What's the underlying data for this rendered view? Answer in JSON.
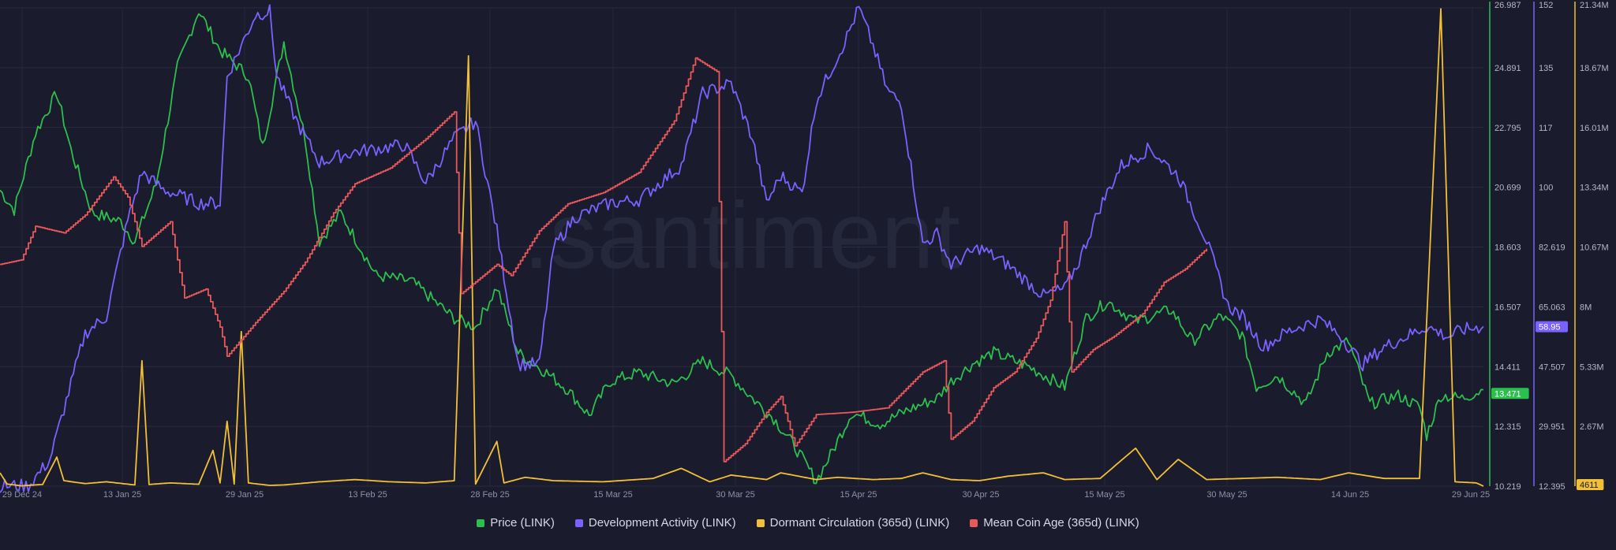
{
  "chart_data": {
    "type": "line",
    "watermark": ".santiment",
    "x_ticks": [
      "29 Dec 24",
      "13 Jan 25",
      "29 Jan 25",
      "13 Feb 25",
      "28 Feb 25",
      "15 Mar 25",
      "30 Mar 25",
      "15 Apr 25",
      "30 Apr 25",
      "15 May 25",
      "30 May 25",
      "14 Jun 25",
      "29 Jun 25"
    ],
    "x_range": [
      "2024-12-29",
      "2025-06-29"
    ],
    "grid": true,
    "legend_position": "bottom",
    "axes": [
      {
        "id": "price",
        "ticks": [
          "26.987",
          "24.891",
          "22.795",
          "20.699",
          "18.603",
          "16.507",
          "14.411",
          "12.315",
          "10.219"
        ],
        "range": [
          10.219,
          26.987
        ],
        "color": "#2dbf4e",
        "current_label": "13.471",
        "current_value": 13.471
      },
      {
        "id": "dev",
        "ticks": [
          "152",
          "135",
          "117",
          "100",
          "82.619",
          "65.063",
          "47.507",
          "29.951",
          "12.395"
        ],
        "range": [
          12.395,
          152
        ],
        "color": "#7b61ff",
        "current_label": "58.95",
        "current_value": 58.95
      },
      {
        "id": "dormant",
        "ticks": [
          "21.34M",
          "18.67M",
          "16.01M",
          "13.34M",
          "10.67M",
          "8M",
          "5.33M",
          "2.67M",
          "4611"
        ],
        "range": [
          4611,
          21340000
        ],
        "color": "#f2c037",
        "current_label": "4611",
        "current_value": 4611
      }
    ],
    "series": [
      {
        "name": "Price (LINK)",
        "axis": "price",
        "color": "#2dbf4e",
        "noise": 0.22,
        "points": [
          [
            0,
            20.6
          ],
          [
            2,
            19.9
          ],
          [
            5,
            22.6
          ],
          [
            8,
            24.0
          ],
          [
            10,
            22.0
          ],
          [
            13,
            19.8
          ],
          [
            17,
            19.5
          ],
          [
            19,
            18.8
          ],
          [
            22,
            20.8
          ],
          [
            25,
            24.9
          ],
          [
            28,
            26.9
          ],
          [
            31,
            25.5
          ],
          [
            35,
            24.6
          ],
          [
            37,
            22.1
          ],
          [
            40,
            25.8
          ],
          [
            43,
            22.4
          ],
          [
            45,
            18.8
          ],
          [
            48,
            19.8
          ],
          [
            53,
            17.6
          ],
          [
            58,
            17.4
          ],
          [
            64,
            16.1
          ],
          [
            67,
            15.8
          ],
          [
            70,
            17.2
          ],
          [
            73,
            14.9
          ],
          [
            77,
            14.2
          ],
          [
            80,
            13.6
          ],
          [
            83,
            12.7
          ],
          [
            86,
            13.9
          ],
          [
            90,
            14.2
          ],
          [
            95,
            13.8
          ],
          [
            99,
            14.6
          ],
          [
            103,
            14.1
          ],
          [
            106,
            13.3
          ],
          [
            109,
            12.6
          ],
          [
            112,
            11.6
          ],
          [
            115,
            10.4
          ],
          [
            117,
            11.3
          ],
          [
            120,
            12.8
          ],
          [
            124,
            12.4
          ],
          [
            128,
            12.9
          ],
          [
            132,
            13.3
          ],
          [
            134,
            13.9
          ],
          [
            137,
            14.5
          ],
          [
            140,
            14.9
          ],
          [
            145,
            14.4
          ],
          [
            150,
            13.7
          ],
          [
            153,
            16.1
          ],
          [
            156,
            16.7
          ],
          [
            160,
            16.0
          ],
          [
            165,
            16.4
          ],
          [
            168,
            15.3
          ],
          [
            172,
            16.2
          ],
          [
            175,
            15.5
          ],
          [
            177,
            13.7
          ],
          [
            180,
            14.1
          ],
          [
            184,
            13.1
          ],
          [
            187,
            14.9
          ],
          [
            190,
            15.3
          ],
          [
            193,
            13.1
          ],
          [
            197,
            13.4
          ],
          [
            200,
            13.0
          ],
          [
            201,
            12.0
          ],
          [
            203,
            13.4
          ],
          [
            206,
            13.3
          ],
          [
            209,
            13.6
          ]
        ]
      },
      {
        "name": "Development Activity (LINK)",
        "axis": "dev",
        "color": "#7b61ff",
        "noise": 2.0,
        "points": [
          [
            0,
            12.5
          ],
          [
            4,
            12.5
          ],
          [
            7,
            20
          ],
          [
            12,
            57
          ],
          [
            15,
            62
          ],
          [
            18,
            90
          ],
          [
            20,
            104
          ],
          [
            23,
            99
          ],
          [
            28,
            95
          ],
          [
            31,
            95
          ],
          [
            32,
            132
          ],
          [
            36,
            150
          ],
          [
            38,
            151
          ],
          [
            39,
            132
          ],
          [
            42,
            118
          ],
          [
            45,
            107
          ],
          [
            50,
            110
          ],
          [
            57,
            112
          ],
          [
            60,
            101
          ],
          [
            64,
            114
          ],
          [
            67,
            119
          ],
          [
            70,
            87
          ],
          [
            73,
            48
          ],
          [
            76,
            48
          ],
          [
            78,
            82
          ],
          [
            81,
            91
          ],
          [
            86,
            95
          ],
          [
            90,
            96
          ],
          [
            96,
            106
          ],
          [
            99,
            127
          ],
          [
            103,
            130
          ],
          [
            106,
            114
          ],
          [
            108,
            95
          ],
          [
            110,
            103
          ],
          [
            113,
            98
          ],
          [
            115,
            125
          ],
          [
            119,
            142
          ],
          [
            121,
            152
          ],
          [
            123,
            141
          ],
          [
            125,
            128
          ],
          [
            127,
            124
          ],
          [
            130,
            83
          ],
          [
            132,
            86
          ],
          [
            134,
            77
          ],
          [
            138,
            82
          ],
          [
            142,
            77
          ],
          [
            147,
            68
          ],
          [
            150,
            70
          ],
          [
            152,
            78
          ],
          [
            155,
            94
          ],
          [
            158,
            106
          ],
          [
            162,
            111
          ],
          [
            166,
            103
          ],
          [
            170,
            84
          ],
          [
            173,
            65
          ],
          [
            175,
            62
          ],
          [
            178,
            53
          ],
          [
            181,
            57
          ],
          [
            183,
            59
          ],
          [
            186,
            61
          ],
          [
            189,
            56
          ],
          [
            192,
            48
          ],
          [
            195,
            53
          ],
          [
            198,
            56
          ],
          [
            201,
            59
          ],
          [
            204,
            56
          ],
          [
            206,
            58
          ],
          [
            209,
            59
          ]
        ]
      },
      {
        "name": "Dormant Circulation (365d) (LINK)",
        "axis": "dormant",
        "color": "#f2c037",
        "noise": 0,
        "points": [
          [
            0,
            600000
          ],
          [
            1,
            100000
          ],
          [
            3,
            20000
          ],
          [
            6,
            80000
          ],
          [
            8,
            1300000
          ],
          [
            9,
            250000
          ],
          [
            12,
            120000
          ],
          [
            15,
            200000
          ],
          [
            19,
            60000
          ],
          [
            20,
            5600000
          ],
          [
            21,
            80000
          ],
          [
            24,
            150000
          ],
          [
            28,
            90000
          ],
          [
            30,
            1600000
          ],
          [
            31,
            150000
          ],
          [
            32,
            2900000
          ],
          [
            33,
            100000
          ],
          [
            34,
            6900000
          ],
          [
            35,
            150000
          ],
          [
            38,
            40000
          ],
          [
            40,
            60000
          ],
          [
            45,
            200000
          ],
          [
            50,
            300000
          ],
          [
            55,
            200000
          ],
          [
            60,
            150000
          ],
          [
            64,
            250000
          ],
          [
            66,
            19200000
          ],
          [
            67,
            100000
          ],
          [
            70,
            2000000
          ],
          [
            71,
            150000
          ],
          [
            74,
            400000
          ],
          [
            78,
            250000
          ],
          [
            85,
            200000
          ],
          [
            92,
            350000
          ],
          [
            96,
            800000
          ],
          [
            100,
            200000
          ],
          [
            103,
            500000
          ],
          [
            108,
            300000
          ],
          [
            110,
            600000
          ],
          [
            115,
            300000
          ],
          [
            118,
            400000
          ],
          [
            123,
            300000
          ],
          [
            127,
            350000
          ],
          [
            130,
            600000
          ],
          [
            134,
            300000
          ],
          [
            138,
            250000
          ],
          [
            142,
            450000
          ],
          [
            147,
            600000
          ],
          [
            150,
            300000
          ],
          [
            155,
            350000
          ],
          [
            160,
            1700000
          ],
          [
            163,
            300000
          ],
          [
            166,
            1200000
          ],
          [
            170,
            300000
          ],
          [
            175,
            350000
          ],
          [
            180,
            400000
          ],
          [
            186,
            300000
          ],
          [
            190,
            600000
          ],
          [
            195,
            350000
          ],
          [
            200,
            350000
          ],
          [
            203,
            21300000
          ],
          [
            205,
            200000
          ],
          [
            208,
            150000
          ],
          [
            209,
            4611
          ]
        ]
      },
      {
        "name": "Mean Coin Age (365d) (LINK)",
        "axis": "dormant",
        "color": "#e9585b",
        "noise": 0,
        "points": [
          [
            0,
            9900000
          ],
          [
            3,
            10100000
          ],
          [
            5,
            11600000
          ],
          [
            9,
            11300000
          ],
          [
            12,
            12100000
          ],
          [
            16,
            13800000
          ],
          [
            18,
            12900000
          ],
          [
            20,
            10700000
          ],
          [
            24,
            11800000
          ],
          [
            26,
            8400000
          ],
          [
            29,
            8800000
          ],
          [
            31,
            7100000
          ],
          [
            32,
            5800000
          ],
          [
            36,
            7300000
          ],
          [
            40,
            8700000
          ],
          [
            43,
            10000000
          ],
          [
            47,
            12200000
          ],
          [
            50,
            13500000
          ],
          [
            55,
            14200000
          ],
          [
            60,
            15500000
          ],
          [
            64,
            16700000
          ],
          [
            65,
            8600000
          ],
          [
            70,
            9900000
          ],
          [
            72,
            9400000
          ],
          [
            76,
            11400000
          ],
          [
            80,
            12600000
          ],
          [
            85,
            13100000
          ],
          [
            90,
            14000000
          ],
          [
            95,
            16300000
          ],
          [
            98,
            19100000
          ],
          [
            101,
            18500000
          ],
          [
            102,
            1100000
          ],
          [
            105,
            1900000
          ],
          [
            108,
            3300000
          ],
          [
            110,
            4000000
          ],
          [
            112,
            1800000
          ],
          [
            115,
            3200000
          ],
          [
            120,
            3300000
          ],
          [
            125,
            3500000
          ],
          [
            130,
            5100000
          ],
          [
            133,
            5600000
          ],
          [
            134,
            2100000
          ],
          [
            137,
            2900000
          ],
          [
            140,
            4400000
          ],
          [
            143,
            5100000
          ],
          [
            146,
            6600000
          ],
          [
            148,
            8300000
          ],
          [
            150,
            11800000
          ],
          [
            151,
            5100000
          ],
          [
            154,
            6100000
          ],
          [
            157,
            6700000
          ],
          [
            161,
            7700000
          ],
          [
            164,
            9100000
          ],
          [
            167,
            9700000
          ],
          [
            170,
            10600000
          ]
        ]
      }
    ]
  }
}
